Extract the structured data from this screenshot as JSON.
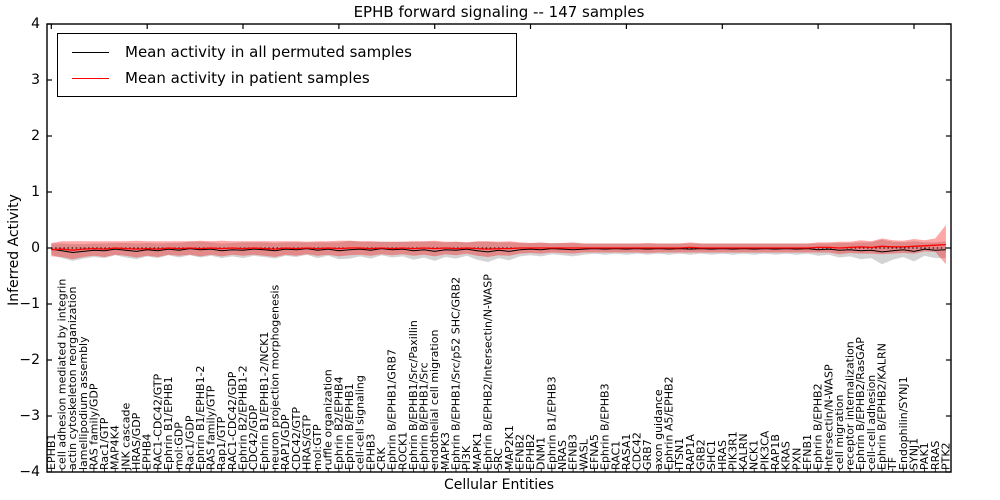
{
  "figure": {
    "title": "EPHB forward signaling -- 147 samples",
    "xlabel": "Cellular Entities",
    "ylabel": "Inferred Activity"
  },
  "legend": {
    "items": [
      {
        "label": "Mean activity in all permuted samples",
        "color": "#000000"
      },
      {
        "label": "Mean activity in patient samples",
        "color": "#ff0000"
      }
    ]
  },
  "chart_data": {
    "type": "line",
    "title": "EPHB forward signaling -- 147 samples",
    "xlabel": "Cellular Entities",
    "ylabel": "Inferred Activity",
    "ylim": [
      -4,
      4
    ],
    "yticks": [
      4,
      3,
      2,
      1,
      0,
      -1,
      -2,
      -3,
      -4
    ],
    "grid": false,
    "legend_position": "upper left",
    "zero_line": {
      "y": 0,
      "style": "dotted",
      "color": "#000000"
    },
    "categories": [
      "EPHB1",
      "cell adhesion mediated by integrin",
      "actin cytoskeleton reorganization",
      "lamellipodium assembly",
      "RAS family/GDP",
      "Rac1/GTP",
      "MAP4K4",
      "JNK cascade",
      "HRAS/GDP",
      "EPHB4",
      "RAC1-CDC42/GTP",
      "Ephrin B1/EPHB1",
      "mol:GDP",
      "Rac1/GDP",
      "Ephrin B1/EPHB1-2",
      "RAS family/GTP",
      "Rap1/GTP",
      "RAC1-CDC42/GDP",
      "Ephrin B2/EPHB1-2",
      "CDC42/GDP",
      "Ephrin B1/EPHB1-2/NCK1",
      "neuron projection morphogenesis",
      "RAP1/GDP",
      "CDC42/GTP",
      "HRAS/GTP",
      "mol:GTP",
      "ruffle organization",
      "Ephrin B2/EPHB4",
      "Ephrin B/EPHB1",
      "cell-cell signaling",
      "EPHB3",
      "CRK",
      "Ephrin B/EPHB1/GRB7",
      "ROCK1",
      "Ephrin B/EPHB1/Src/Paxillin",
      "Ephrin B/EPHB1/Src",
      "endothelial cell migration",
      "MAPK3",
      "Ephrin B/EPHB1/Src/p52 SHC/GRB2",
      "PI3K",
      "MAPK1",
      "Ephrin B/EPHB2/Intersectin/N-WASP",
      "SRC",
      "MAP2K1",
      "EFNB2",
      "EPHB2",
      "DNM1",
      "Ephrin B1/EPHB3",
      "NRAS",
      "EFNB3",
      "WASL",
      "EFNA5",
      "Ephrin B/EPHB3",
      "RAC1",
      "RASA1",
      "CDC42",
      "GRB7",
      "axon guidance",
      "Ephrin A5/EPHB2",
      "ITSN1",
      "RAP1A",
      "GRB2",
      "SHC1",
      "HRAS",
      "PIK3R1",
      "KALRN",
      "NCK1",
      "PIK3CA",
      "RAP1B",
      "KRAS",
      "PXN",
      "EFNB1",
      "Ephrin B/EPHB2",
      "Intersectin/N-WASP",
      "cell migration",
      "receptor internalization",
      "Ephrin B/EPHB2/RasGAP",
      "cell-cell adhesion",
      "Ephrin B/EPHB2/KALRN",
      "TF",
      "Endophilin/SYNJ1",
      "SYNJ1",
      "PAK1",
      "RRAS",
      "PTK2"
    ],
    "series": [
      {
        "name": "Mean activity in all permuted samples",
        "color": "#000000",
        "band_fill": "#808080",
        "band_opacity": 0.35,
        "values": [
          -0.02,
          -0.05,
          -0.08,
          -0.06,
          -0.04,
          -0.05,
          -0.02,
          -0.04,
          -0.06,
          -0.03,
          -0.05,
          -0.02,
          -0.04,
          -0.01,
          -0.03,
          -0.02,
          -0.05,
          -0.03,
          -0.04,
          -0.02,
          -0.03,
          -0.05,
          -0.02,
          -0.03,
          -0.01,
          -0.04,
          -0.02,
          -0.05,
          -0.03,
          -0.02,
          -0.04,
          -0.01,
          -0.03,
          -0.02,
          -0.05,
          -0.03,
          -0.06,
          -0.03,
          -0.04,
          -0.02,
          -0.05,
          -0.07,
          -0.04,
          -0.06,
          -0.03,
          -0.02,
          -0.03,
          -0.01,
          -0.02,
          -0.03,
          -0.02,
          -0.01,
          -0.02,
          -0.01,
          -0.02,
          -0.01,
          -0.02,
          -0.01,
          -0.02,
          -0.01,
          -0.02,
          -0.01,
          -0.02,
          -0.01,
          -0.02,
          -0.01,
          -0.02,
          -0.01,
          -0.02,
          -0.01,
          -0.02,
          -0.01,
          -0.03,
          -0.02,
          -0.04,
          -0.03,
          -0.05,
          -0.04,
          -0.07,
          -0.05,
          -0.03,
          -0.06,
          -0.02,
          -0.04,
          -0.03
        ],
        "band_halfwidth": [
          0.1,
          0.13,
          0.15,
          0.13,
          0.12,
          0.13,
          0.11,
          0.13,
          0.14,
          0.12,
          0.13,
          0.11,
          0.13,
          0.12,
          0.14,
          0.12,
          0.13,
          0.12,
          0.14,
          0.12,
          0.13,
          0.14,
          0.12,
          0.13,
          0.11,
          0.14,
          0.12,
          0.15,
          0.16,
          0.13,
          0.15,
          0.12,
          0.14,
          0.13,
          0.16,
          0.14,
          0.17,
          0.13,
          0.15,
          0.12,
          0.16,
          0.18,
          0.14,
          0.16,
          0.12,
          0.11,
          0.12,
          0.1,
          0.11,
          0.12,
          0.1,
          0.09,
          0.1,
          0.09,
          0.1,
          0.09,
          0.1,
          0.09,
          0.1,
          0.09,
          0.1,
          0.09,
          0.1,
          0.09,
          0.1,
          0.09,
          0.1,
          0.09,
          0.1,
          0.09,
          0.1,
          0.09,
          0.11,
          0.1,
          0.13,
          0.12,
          0.15,
          0.14,
          0.22,
          0.16,
          0.13,
          0.18,
          0.12,
          0.14,
          0.15
        ]
      },
      {
        "name": "Mean activity in patient samples",
        "color": "#ff0000",
        "band_fill": "#ff0000",
        "band_opacity": 0.35,
        "values": [
          -0.03,
          -0.02,
          -0.04,
          -0.02,
          -0.01,
          -0.02,
          0,
          -0.01,
          -0.02,
          -0.01,
          -0.02,
          0,
          -0.01,
          0,
          -0.01,
          0,
          -0.01,
          0,
          -0.01,
          0,
          -0.01,
          -0.02,
          0,
          -0.01,
          0,
          -0.01,
          0,
          -0.01,
          0,
          0,
          -0.01,
          0,
          -0.01,
          0,
          -0.01,
          0,
          -0.01,
          0,
          -0.01,
          0,
          -0.01,
          -0.02,
          -0.01,
          -0.01,
          0,
          0,
          0,
          0,
          0,
          0,
          0,
          0,
          0,
          0,
          0,
          0,
          0,
          0,
          0,
          0,
          0.01,
          0,
          0,
          0,
          0,
          0,
          0,
          0,
          0,
          0,
          0,
          0,
          0.01,
          0.01,
          0,
          0.01,
          0.02,
          0.01,
          0.03,
          0.02,
          0.02,
          0.03,
          0.04,
          0.05,
          0.06
        ],
        "band_halfwidth": [
          0.12,
          0.14,
          0.16,
          0.14,
          0.13,
          0.14,
          0.12,
          0.13,
          0.15,
          0.13,
          0.14,
          0.12,
          0.13,
          0.12,
          0.14,
          0.12,
          0.14,
          0.12,
          0.13,
          0.12,
          0.13,
          0.14,
          0.12,
          0.13,
          0.11,
          0.13,
          0.12,
          0.14,
          0.13,
          0.12,
          0.13,
          0.11,
          0.12,
          0.11,
          0.13,
          0.12,
          0.14,
          0.11,
          0.12,
          0.1,
          0.13,
          0.14,
          0.12,
          0.13,
          0.1,
          0.09,
          0.1,
          0.08,
          0.09,
          0.1,
          0.08,
          0.08,
          0.08,
          0.08,
          0.08,
          0.08,
          0.09,
          0.08,
          0.08,
          0.08,
          0.09,
          0.08,
          0.08,
          0.08,
          0.08,
          0.08,
          0.08,
          0.08,
          0.08,
          0.08,
          0.08,
          0.08,
          0.09,
          0.09,
          0.11,
          0.1,
          0.12,
          0.11,
          0.14,
          0.12,
          0.11,
          0.13,
          0.1,
          0.12,
          0.35
        ]
      }
    ]
  }
}
